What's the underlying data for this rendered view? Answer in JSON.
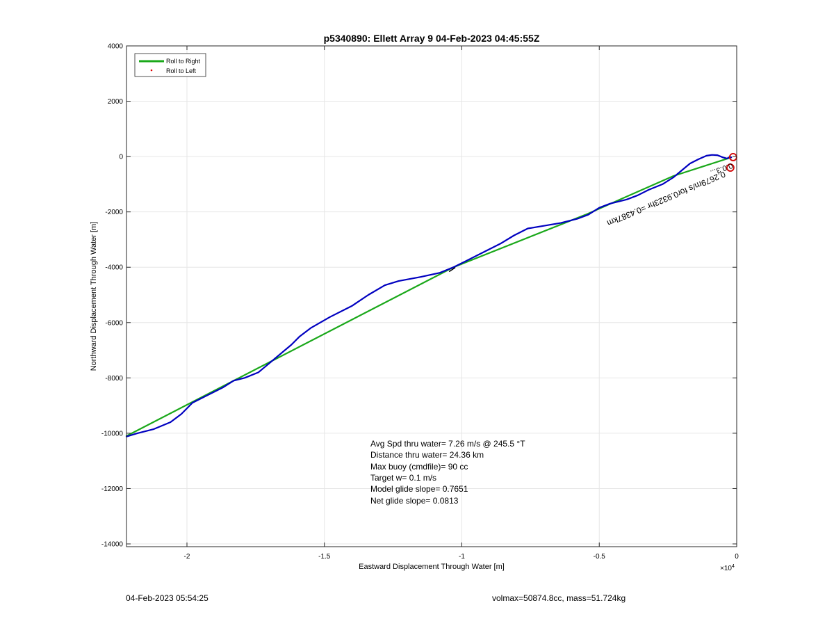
{
  "footer": {
    "left_text": "04-Feb-2023 05:54:25",
    "right_text": "volmax=50874.8cc, mass=51.724kg"
  },
  "chart_data": {
    "type": "line",
    "title": "p5340890: Ellett Array 9 04-Feb-2023 04:45:55Z",
    "xlabel": "Eastward Displacement Through Water [m]",
    "ylabel": "Northward Displacement Through Water [m]",
    "x_exponent_label": "×10",
    "x_exponent_power": "4",
    "xlim": [
      -22200,
      0
    ],
    "ylim": [
      -14100,
      4000
    ],
    "x_ticks": [
      -20000,
      -15000,
      -10000,
      -5000,
      0
    ],
    "x_tick_labels": [
      "-2",
      "-1.5",
      "-1",
      "-0.5",
      "0"
    ],
    "y_ticks": [
      4000,
      2000,
      0,
      -2000,
      -4000,
      -6000,
      -8000,
      -10000,
      -12000,
      -14000
    ],
    "y_tick_labels": [
      "4000",
      "2000",
      "0",
      "-2000",
      "-4000",
      "-6000",
      "-8000",
      "-10000",
      "-12000",
      "-14000"
    ],
    "grid": true,
    "legend_position": "top-left",
    "legend": [
      {
        "label": "Roll to Right",
        "color": "#1aa81a",
        "marker": "line"
      },
      {
        "label": "Roll to Left",
        "color": "#e00000",
        "marker": "dot"
      }
    ],
    "series": [
      {
        "name": "Roll to Right",
        "color": "#1aa81a",
        "points": [
          [
            -22200,
            -10100
          ],
          [
            -10300,
            -4000
          ],
          [
            -5500,
            -2100
          ],
          [
            -2300,
            -700
          ],
          [
            -200,
            -30
          ]
        ]
      },
      {
        "color": "#0000c0",
        "points": [
          [
            -22200,
            -10120
          ],
          [
            -21800,
            -10000
          ],
          [
            -21200,
            -9850
          ],
          [
            -20600,
            -9600
          ],
          [
            -20200,
            -9300
          ],
          [
            -19800,
            -8900
          ],
          [
            -19300,
            -8650
          ],
          [
            -18700,
            -8350
          ],
          [
            -18300,
            -8100
          ],
          [
            -17900,
            -8000
          ],
          [
            -17400,
            -7800
          ],
          [
            -16800,
            -7300
          ],
          [
            -16200,
            -6800
          ],
          [
            -15900,
            -6500
          ],
          [
            -15500,
            -6200
          ],
          [
            -14800,
            -5800
          ],
          [
            -14000,
            -5400
          ],
          [
            -13400,
            -5000
          ],
          [
            -12800,
            -4650
          ],
          [
            -12300,
            -4500
          ],
          [
            -11500,
            -4350
          ],
          [
            -10800,
            -4200
          ],
          [
            -10300,
            -4000
          ],
          [
            -9800,
            -3750
          ],
          [
            -9200,
            -3450
          ],
          [
            -8600,
            -3150
          ],
          [
            -8100,
            -2850
          ],
          [
            -7600,
            -2600
          ],
          [
            -7000,
            -2500
          ],
          [
            -6400,
            -2400
          ],
          [
            -5800,
            -2250
          ],
          [
            -5400,
            -2100
          ],
          [
            -5000,
            -1850
          ],
          [
            -4600,
            -1700
          ],
          [
            -4000,
            -1550
          ],
          [
            -3600,
            -1400
          ],
          [
            -3200,
            -1200
          ],
          [
            -2700,
            -1000
          ],
          [
            -2300,
            -750
          ],
          [
            -2000,
            -500
          ],
          [
            -1700,
            -250
          ],
          [
            -1400,
            -100
          ],
          [
            -1100,
            30
          ],
          [
            -900,
            60
          ],
          [
            -700,
            50
          ],
          [
            -500,
            -30
          ],
          [
            -350,
            -70
          ],
          [
            -250,
            -10
          ],
          [
            -200,
            -30
          ]
        ]
      },
      {
        "color": "#000000",
        "points": [
          [
            -10450,
            -4150
          ],
          [
            -10250,
            -4020
          ]
        ]
      }
    ],
    "markers": [
      {
        "type": "circle",
        "color": "#d00000",
        "x": -230,
        "y": -400
      },
      {
        "type": "circle",
        "color": "#d00000",
        "x": -130,
        "y": -20
      }
    ],
    "annotation_lines": [
      "Avg Spd thru water=  7.26 m/s @ 245.5 °T",
      "Distance thru water= 24.36 km",
      "Max buoy (cmdfile)= 90 cc",
      "Target w= 0.1 m/s",
      "Model glide slope= 0.7651",
      "Net glide slope= 0.0813"
    ],
    "rotated_annotations": [
      "0.2679m/s for0.9323hr =0.4387km",
      "0.0.3..."
    ]
  }
}
